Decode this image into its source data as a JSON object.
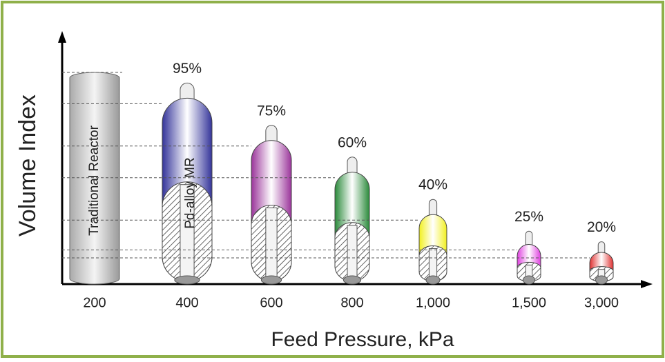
{
  "chart_data": {
    "type": "vessel",
    "x_label": "Feed Pressure, kPa",
    "y_label": "Volume Index",
    "annotations": [
      "Traditional Reactor",
      "Pd-alloy MR"
    ],
    "categories": [
      "200",
      "400",
      "600",
      "800",
      "1,000",
      "1,500",
      "3,000"
    ],
    "values": [
      100,
      95,
      75,
      60,
      40,
      25,
      20
    ],
    "value_labels": [
      null,
      "95%",
      "75%",
      "60%",
      "40%",
      "25%",
      "20%"
    ],
    "colors": [
      "#c8c8c8",
      "#34349a",
      "#9a349a",
      "#2a8a3a",
      "#f2f020",
      "#e040e0",
      "#e03030"
    ],
    "ylim": [
      0,
      100
    ]
  }
}
